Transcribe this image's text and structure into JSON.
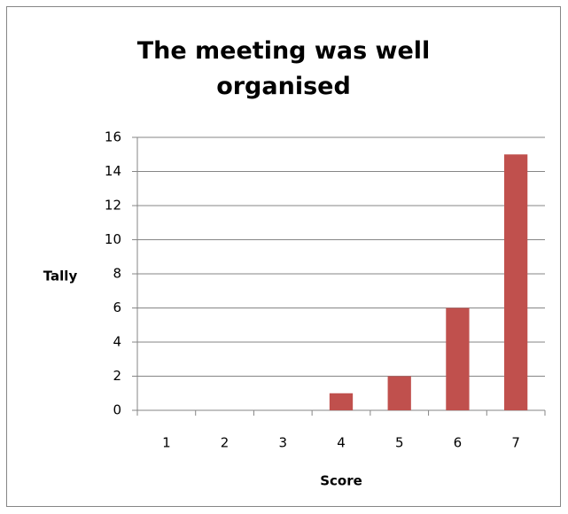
{
  "chart_data": {
    "type": "bar",
    "title": "The meeting was well organised",
    "x_label": "Score",
    "y_label": "Tally",
    "categories": [
      "1",
      "2",
      "3",
      "4",
      "5",
      "6",
      "7"
    ],
    "values": [
      0,
      0,
      0,
      1,
      2,
      6,
      15
    ],
    "color": "#c0504d",
    "ylim": [
      0,
      16
    ],
    "yticks": [
      0,
      2,
      4,
      6,
      8,
      10,
      12,
      14,
      16
    ],
    "grid": true
  }
}
